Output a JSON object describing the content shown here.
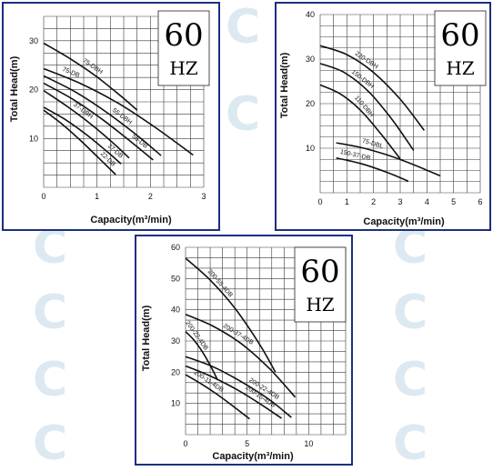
{
  "watermarks": [
    "С",
    "С",
    "С",
    "С",
    "С",
    "С",
    "С",
    "С",
    "С",
    "С"
  ],
  "chart_data": [
    {
      "type": "line",
      "frequency_big": "60",
      "frequency_small": "HZ",
      "xlabel": "Capacity(m³/min)",
      "ylabel": "Total  Head(m)",
      "xlim": [
        0,
        3
      ],
      "ylim": [
        0,
        35
      ],
      "xticks": [
        "0",
        "1",
        "2",
        "3"
      ],
      "xtick_values": [
        0,
        1,
        2,
        3
      ],
      "yticks": [
        "10",
        "20",
        "30"
      ],
      "ytick_values": [
        10,
        20,
        30
      ],
      "grid": true,
      "series": [
        {
          "name": "75-DBH",
          "x": [
            0,
            0.5,
            1.0,
            1.5,
            1.75
          ],
          "y": [
            29.5,
            26.3,
            22.6,
            18.2,
            15.8
          ],
          "label_at": 0.9
        },
        {
          "name": "75-DB",
          "x": [
            0,
            0.7,
            1.4,
            2.1,
            2.8
          ],
          "y": [
            24.3,
            21.2,
            17.2,
            12.2,
            6.6
          ],
          "label_at": 0.5
        },
        {
          "name": "55-DBH",
          "x": [
            0,
            0.6,
            1.2,
            1.8,
            2.2
          ],
          "y": [
            22.8,
            19.5,
            15.2,
            10.2,
            6.5
          ],
          "label_at": 1.45
        },
        {
          "name": "55-DB",
          "x": [
            0,
            0.55,
            1.1,
            1.65,
            2.05
          ],
          "y": [
            21.3,
            18.0,
            13.9,
            9.2,
            5.6
          ],
          "label_at": 1.78
        },
        {
          "name": "37-DBH",
          "x": [
            0,
            0.45,
            0.9,
            1.35,
            1.6
          ],
          "y": [
            19.8,
            16.5,
            12.8,
            8.6,
            6.0
          ],
          "label_at": 0.72
        },
        {
          "name": "37-DB",
          "x": [
            0,
            0.4,
            0.8,
            1.2,
            1.45
          ],
          "y": [
            16.4,
            13.9,
            10.8,
            7.2,
            4.8
          ],
          "label_at": 1.32
        },
        {
          "name": "22-DB",
          "x": [
            0,
            0.35,
            0.7,
            1.05,
            1.35
          ],
          "y": [
            15.8,
            12.9,
            9.5,
            5.8,
            2.6
          ],
          "label_at": 1.18
        }
      ]
    },
    {
      "type": "line",
      "frequency_big": "60",
      "frequency_small": "HZ",
      "xlabel": "Capacity(m³/min)",
      "ylabel": "Total  Head(m)",
      "xlim": [
        0,
        6
      ],
      "ylim": [
        0,
        40
      ],
      "xticks": [
        "0",
        "1",
        "2",
        "3",
        "4",
        "5",
        "6"
      ],
      "xtick_values": [
        0,
        1,
        2,
        3,
        4,
        5,
        6
      ],
      "yticks": [
        "10",
        "20",
        "30",
        "40"
      ],
      "ytick_values": [
        10,
        20,
        30,
        40
      ],
      "grid": true,
      "series": [
        {
          "name": "220-DBH",
          "x": [
            0,
            1.0,
            2.0,
            3.0,
            3.9
          ],
          "y": [
            33.0,
            31.0,
            27.0,
            21.0,
            14.0
          ],
          "label_at": 1.7
        },
        {
          "name": "150-DBH",
          "x": [
            0,
            0.9,
            1.8,
            2.7,
            3.5
          ],
          "y": [
            29.0,
            27.0,
            22.8,
            16.4,
            9.5
          ],
          "label_at": 1.55
        },
        {
          "name": "110-DBH",
          "x": [
            0,
            0.75,
            1.5,
            2.25,
            3.0
          ],
          "y": [
            24.2,
            22.2,
            18.6,
            13.4,
            7.6
          ],
          "label_at": 1.6
        },
        {
          "name": "75-DBL",
          "x": [
            0.6,
            1.5,
            2.5,
            3.5,
            4.5
          ],
          "y": [
            11.2,
            10.2,
            8.5,
            6.3,
            3.8
          ],
          "label_at": 1.95
        },
        {
          "name": "150-37-DB",
          "x": [
            0.6,
            1.5,
            2.5,
            3.3
          ],
          "y": [
            7.8,
            6.6,
            4.6,
            2.6
          ],
          "label_at": 1.3
        }
      ]
    },
    {
      "type": "line",
      "frequency_big": "60",
      "frequency_small": "HZ",
      "xlabel": "Capacity(m³/min)",
      "ylabel": "Total  Head(m)",
      "xlim": [
        0,
        13
      ],
      "ylim": [
        0,
        60
      ],
      "xticks": [
        "0",
        "5",
        "10"
      ],
      "xtick_values": [
        0,
        5,
        10
      ],
      "yticks": [
        "10",
        "20",
        "30",
        "40",
        "50",
        "60"
      ],
      "ytick_values": [
        10,
        20,
        30,
        40,
        50,
        60
      ],
      "grid": true,
      "series": [
        {
          "name": "200-55-4DB",
          "x": [
            0,
            2.0,
            4.0,
            6.0,
            7.3
          ],
          "y": [
            56.5,
            49.5,
            40.5,
            29.0,
            20.0
          ],
          "label_at": 2.7
        },
        {
          "name": "200-37-4DB",
          "x": [
            0,
            2.2,
            4.5,
            6.8,
            8.9
          ],
          "y": [
            38.5,
            34.8,
            29.2,
            21.2,
            12.0
          ],
          "label_at": 4.2
        },
        {
          "name": "200-22-4DB",
          "x": [
            0,
            2.2,
            4.5,
            6.8,
            8.6
          ],
          "y": [
            25.0,
            21.8,
            17.0,
            11.2,
            5.5
          ],
          "label_at": 6.3
        },
        {
          "name": "200-15-4DB",
          "x": [
            0,
            2.0,
            4.0,
            6.0,
            7.8
          ],
          "y": [
            22.0,
            18.8,
            14.8,
            10.0,
            5.2
          ],
          "label_at": 6.0
        },
        {
          "name": "200-11-4DB",
          "x": [
            0,
            1.3,
            2.6,
            3.9,
            5.2
          ],
          "y": [
            19.2,
            16.2,
            12.8,
            9.0,
            5.0
          ],
          "label_at": 1.8
        },
        {
          "name": "200-22-4DB",
          "x": [
            0,
            0.7,
            1.4,
            2.1,
            2.6
          ],
          "y": [
            33.0,
            30.2,
            26.3,
            21.5,
            17.5
          ],
          "label_at": 0.8
        }
      ]
    }
  ]
}
